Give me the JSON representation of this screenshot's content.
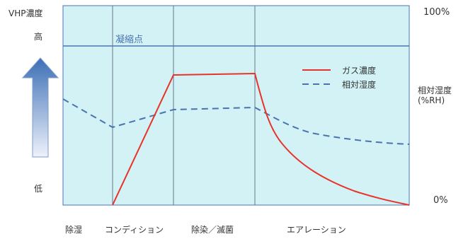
{
  "left_axis": {
    "title": "VHP濃度",
    "high_label": "高",
    "low_label": "低"
  },
  "right_axis": {
    "top_label": "100%",
    "bottom_label": "0%",
    "title_line1": "相対湿度",
    "title_line2": "(%RH)"
  },
  "annotation": {
    "condensation": "凝縮点"
  },
  "legend": [
    {
      "label": "ガス濃度",
      "color": "#e8332a",
      "style": "solid"
    },
    {
      "label": "相対湿度",
      "color": "#4a74b0",
      "style": "dashed"
    }
  ],
  "phases": [
    "除湿",
    "コンディション",
    "除染／滅菌",
    "エアレーション"
  ],
  "colors": {
    "plot_background": "#d2f2f6",
    "frame": "#4a74b0",
    "divider": "#667788",
    "gas_line": "#e8332a",
    "humidity_line": "#4a74b0",
    "arrow_top": "#3c6fb6",
    "arrow_bottom": "#eef2fa"
  }
}
